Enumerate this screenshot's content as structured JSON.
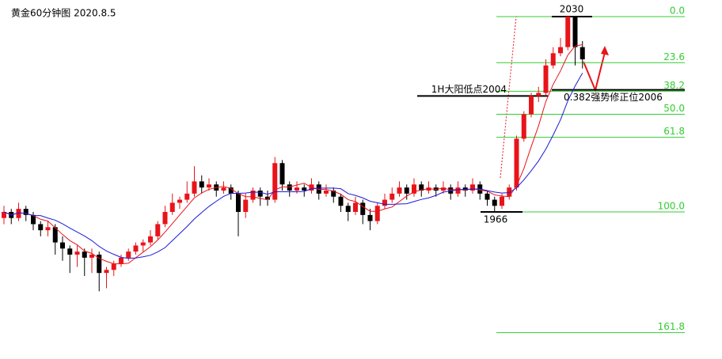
{
  "chart_data": {
    "type": "candlestick",
    "title": "黄金60分钟图 2020.8.5",
    "up_color": "#e8141a",
    "down_color": "#000000",
    "fib_color": "#33cc33",
    "fib_high": 2030,
    "fib_low": 1966,
    "fib_levels": [
      {
        "value": 0,
        "label": "0.0"
      },
      23.6,
      38.2,
      {
        "value": 50,
        "label": "50.0"
      },
      61.8,
      {
        "value": 100,
        "label": "100.0"
      },
      161.8
    ],
    "annotations": [
      {
        "text": "1H大阳低点2004",
        "price": 2004
      },
      {
        "text": "0.382强势修正位2006",
        "price": 2006
      }
    ],
    "candles": [
      [
        1964,
        1968,
        1962,
        1966
      ],
      [
        1966,
        1967,
        1962,
        1964
      ],
      [
        1964,
        1969,
        1963,
        1967
      ],
      [
        1967,
        1968,
        1963,
        1965
      ],
      [
        1965,
        1966,
        1960,
        1962
      ],
      [
        1962,
        1963,
        1958,
        1960
      ],
      [
        1960,
        1963,
        1958,
        1961
      ],
      [
        1961,
        1962,
        1952,
        1956
      ],
      [
        1956,
        1958,
        1950,
        1954
      ],
      [
        1954,
        1955,
        1946,
        1952
      ],
      [
        1952,
        1955,
        1948,
        1953
      ],
      [
        1953,
        1954,
        1945,
        1951
      ],
      [
        1951,
        1954,
        1946,
        1952
      ],
      [
        1952,
        1953,
        1940,
        1946
      ],
      [
        1946,
        1948,
        1941,
        1947
      ],
      [
        1947,
        1950,
        1945,
        1949
      ],
      [
        1949,
        1952,
        1948,
        1951
      ],
      [
        1951,
        1954,
        1950,
        1953
      ],
      [
        1953,
        1956,
        1952,
        1955
      ],
      [
        1955,
        1957,
        1953,
        1956
      ],
      [
        1956,
        1960,
        1955,
        1958
      ],
      [
        1958,
        1963,
        1957,
        1962
      ],
      [
        1962,
        1968,
        1961,
        1966
      ],
      [
        1966,
        1972,
        1965,
        1969
      ],
      [
        1969,
        1971,
        1967,
        1970
      ],
      [
        1970,
        1976,
        1969,
        1972
      ],
      [
        1972,
        1981,
        1971,
        1976
      ],
      [
        1976,
        1978,
        1972,
        1974
      ],
      [
        1974,
        1977,
        1973,
        1975
      ],
      [
        1975,
        1976,
        1971,
        1973
      ],
      [
        1973,
        1976,
        1972,
        1974
      ],
      [
        1974,
        1975,
        1970,
        1972
      ],
      [
        1972,
        1973,
        1958,
        1966
      ],
      [
        1966,
        1972,
        1964,
        1970
      ],
      [
        1970,
        1974,
        1969,
        1973
      ],
      [
        1973,
        1974,
        1968,
        1971
      ],
      [
        1971,
        1973,
        1968,
        1970
      ],
      [
        1970,
        1984,
        1969,
        1982
      ],
      [
        1982,
        1983,
        1973,
        1975
      ],
      [
        1975,
        1976,
        1971,
        1973
      ],
      [
        1973,
        1976,
        1972,
        1974
      ],
      [
        1974,
        1975,
        1971,
        1973
      ],
      [
        1973,
        1977,
        1972,
        1975
      ],
      [
        1975,
        1976,
        1970,
        1972
      ],
      [
        1972,
        1975,
        1971,
        1973
      ],
      [
        1973,
        1974,
        1969,
        1971
      ],
      [
        1971,
        1972,
        1966,
        1968
      ],
      [
        1968,
        1969,
        1963,
        1966
      ],
      [
        1966,
        1971,
        1965,
        1969
      ],
      [
        1969,
        1970,
        1962,
        1965
      ],
      [
        1965,
        1967,
        1960,
        1963
      ],
      [
        1963,
        1969,
        1962,
        1968
      ],
      [
        1968,
        1972,
        1967,
        1970
      ],
      [
        1970,
        1974,
        1969,
        1972
      ],
      [
        1972,
        1976,
        1971,
        1974
      ],
      [
        1974,
        1975,
        1970,
        1972
      ],
      [
        1972,
        1977,
        1971,
        1975
      ],
      [
        1975,
        1976,
        1971,
        1973
      ],
      [
        1973,
        1976,
        1972,
        1974
      ],
      [
        1974,
        1975,
        1971,
        1973
      ],
      [
        1973,
        1976,
        1972,
        1974
      ],
      [
        1974,
        1975,
        1970,
        1972
      ],
      [
        1972,
        1976,
        1971,
        1974
      ],
      [
        1974,
        1975,
        1971,
        1973
      ],
      [
        1973,
        1977,
        1972,
        1975
      ],
      [
        1975,
        1976,
        1970,
        1972
      ],
      [
        1972,
        1973,
        1968,
        1970
      ],
      [
        1970,
        1971,
        1966,
        1968
      ],
      [
        1968,
        1972,
        1967,
        1971
      ],
      [
        1971,
        1975,
        1970,
        1974
      ],
      [
        1974,
        1991,
        1973,
        1990
      ],
      [
        1990,
        1999,
        1989,
        1998
      ],
      [
        1998,
        2005,
        1997,
        2004
      ],
      [
        2004,
        2007,
        2002,
        2005
      ],
      [
        2005,
        2016,
        2004,
        2014
      ],
      [
        2014,
        2020,
        2013,
        2018
      ],
      [
        2018,
        2023,
        2017,
        2020
      ],
      [
        2020,
        2030,
        2019,
        2030
      ],
      [
        2030,
        2030,
        2014,
        2020
      ],
      [
        2020,
        2022,
        2013,
        2016
      ]
    ],
    "ma_lines": [
      {
        "color": "#e8141a",
        "values": [
          1966,
          1965,
          1965.7,
          1965.5,
          1964.8,
          1963.6,
          1963,
          1960.8,
          1958.6,
          1956.6,
          1955.2,
          1953.2,
          1952.4,
          1950.8,
          1949.8,
          1949,
          1949,
          1949.2,
          1951,
          1952.8,
          1954.6,
          1956.8,
          1959.4,
          1962.2,
          1965,
          1967.8,
          1970.6,
          1972.2,
          1973.4,
          1974,
          1974.4,
          1973.6,
          1972,
          1971,
          1971,
          1970.4,
          1970,
          1973.2,
          1974.2,
          1974.2,
          1974.8,
          1975.4,
          1974,
          1973.4,
          1973.4,
          1972.8,
          1971.8,
          1970,
          1969.4,
          1967.8,
          1966.2,
          1966.2,
          1967,
          1967.6,
          1969.4,
          1971.2,
          1972.6,
          1973.2,
          1973.6,
          1973.4,
          1973.8,
          1973.2,
          1973.4,
          1973.2,
          1973.6,
          1973.2,
          1972.8,
          1971.6,
          1971.2,
          1971,
          1974.6,
          1980.2,
          1987.4,
          1994.2,
          2002.2,
          2007.8,
          2012.2,
          2017.4,
          2020.4,
          2020.8
        ]
      },
      {
        "color": "#1a1ad8",
        "values": [
          1966,
          1965,
          1965.7,
          1965.5,
          1964.8,
          1964.8,
          1964,
          1963.3,
          1962.1,
          1960.7,
          1959.4,
          1958.1,
          1956.6,
          1954.7,
          1953.2,
          1952.1,
          1951.1,
          1950.8,
          1950.9,
          1951.3,
          1951.8,
          1952.9,
          1954.3,
          1956.6,
          1958.9,
          1961.2,
          1963.7,
          1965.8,
          1967.8,
          1969.5,
          1971.1,
          1972.1,
          1972.1,
          1972.2,
          1972.5,
          1972.4,
          1971.8,
          1972.6,
          1972.6,
          1972.6,
          1972.6,
          1972.7,
          1973.6,
          1973.8,
          1973.8,
          1973.8,
          1973.6,
          1972,
          1971.4,
          1970.6,
          1969.5,
          1969,
          1968.5,
          1968.5,
          1968.6,
          1968.7,
          1969.4,
          1970.1,
          1970.6,
          1971.4,
          1972.5,
          1972.9,
          1973.3,
          1973.4,
          1973.5,
          1973.5,
          1973,
          1972.5,
          1972.2,
          1972.3,
          1973.9,
          1976.5,
          1979.5,
          1982.7,
          1986.6,
          1991.2,
          1996.2,
          2002.4,
          2007.3,
          2011.5
        ]
      }
    ]
  }
}
